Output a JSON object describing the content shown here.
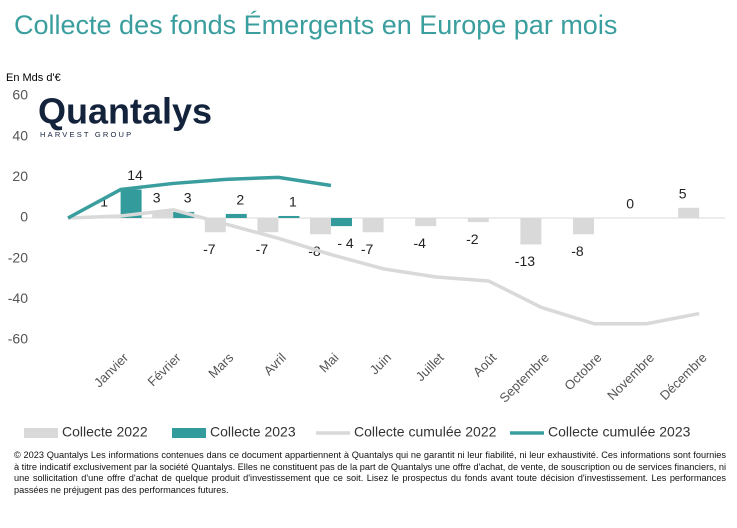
{
  "chart_data": {
    "type": "bar",
    "title": "Collecte des fonds Émergents en Europe par mois",
    "y_label": "En Mds d'€",
    "logo": {
      "name": "Quantalys",
      "tagline": "HARVEST GROUP"
    },
    "categories": [
      null,
      "Janvier",
      "Février",
      "Mars",
      "Avril",
      "Mai",
      "Juin",
      "Juillet",
      "Août",
      "Septembre",
      "Octobre",
      "Novembre",
      "Décembre"
    ],
    "ylim": [
      -60,
      60
    ],
    "yticks": [
      -60,
      -40,
      -20,
      0,
      20,
      40,
      60
    ],
    "series": [
      {
        "name": "Collecte 2022",
        "type": "bar",
        "color": "#d9d9d9",
        "values": [
          null,
          1,
          3,
          -7,
          -7,
          -8,
          -7,
          -4,
          -2,
          -13,
          -8,
          0,
          5
        ]
      },
      {
        "name": "Collecte 2023",
        "type": "bar",
        "color": "#339b9b",
        "values": [
          null,
          14,
          3,
          2,
          1,
          -4,
          null,
          null,
          null,
          null,
          null,
          null,
          null
        ],
        "value_labels": [
          null,
          "14",
          "3",
          "2",
          "1",
          "- 4",
          null,
          null,
          null,
          null,
          null,
          null,
          null
        ]
      },
      {
        "name": "Collecte cumulée 2022",
        "type": "line",
        "color": "#d9d9d9",
        "values": [
          0,
          1,
          4,
          -3,
          -10,
          -18,
          -25,
          -29,
          -31,
          -44,
          -52,
          -52,
          -47
        ]
      },
      {
        "name": "Collecte cumulée 2023",
        "type": "line",
        "color": "#3a9e9e",
        "values": [
          0,
          14,
          17,
          19,
          20,
          16,
          null,
          null,
          null,
          null,
          null,
          null,
          null
        ]
      }
    ],
    "footer": "© 2023 Quantalys Les informations contenues dans ce document appartiennent à Quantalys qui ne garantit ni leur fiabilité, ni leur exhaustivité. Ces informations sont fournies à titre indicatif exclusivement par la société Quantalys. Elles ne constituent pas de la part de Quantalys une offre d'achat, de vente, de souscription ou de services financiers, ni une sollicitation d'une offre d'achat de quelque produit d'investissement que ce soit. Lisez le prospectus du fonds avant toute décision d'investissement. Les performances passées ne préjugent pas des performances futures."
  }
}
